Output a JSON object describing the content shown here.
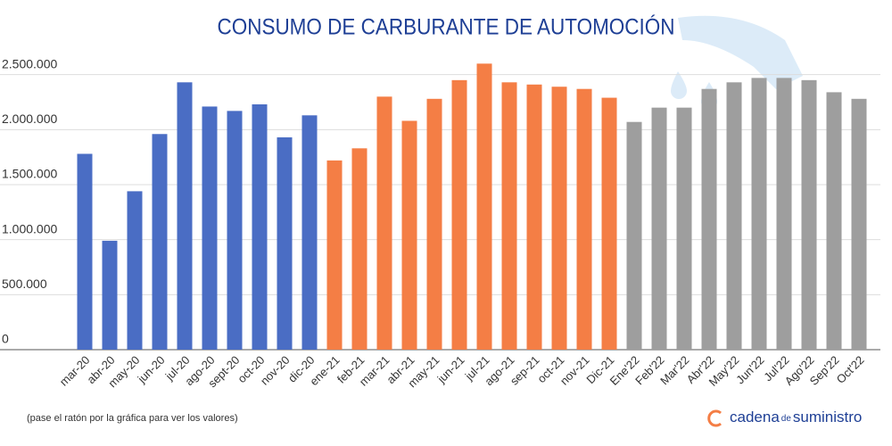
{
  "chart_data": {
    "type": "bar",
    "title": "CONSUMO DE CARBURANTE DE AUTOMOCIÓN",
    "categories": [
      "mar-20",
      "abr-20",
      "may-20",
      "jun-20",
      "jul-20",
      "ago-20",
      "sept-20",
      "oct-20",
      "nov-20",
      "dic-20",
      "ene-21",
      "feb-21",
      "mar-21",
      "abr-21",
      "may-21",
      "jun-21",
      "jul-21",
      "ago-21",
      "sep-21",
      "oct-21",
      "nov-21",
      "Dic-21",
      "Ene'22",
      "Feb'22",
      "Mar'22",
      "Abr'22",
      "May'22",
      "Jun'22",
      "Jul'22",
      "Ago'22",
      "Sep'22",
      "Oct'22"
    ],
    "values": [
      1780000,
      990000,
      1440000,
      1960000,
      2430000,
      2210000,
      2170000,
      2230000,
      1930000,
      2130000,
      1720000,
      1830000,
      2300000,
      2080000,
      2280000,
      2450000,
      2600000,
      2430000,
      2410000,
      2390000,
      2370000,
      2290000,
      2070000,
      2200000,
      2200000,
      2370000,
      2430000,
      2470000,
      2470000,
      2450000,
      2340000,
      2280000
    ],
    "colors": [
      "#4a6dc4",
      "#4a6dc4",
      "#4a6dc4",
      "#4a6dc4",
      "#4a6dc4",
      "#4a6dc4",
      "#4a6dc4",
      "#4a6dc4",
      "#4a6dc4",
      "#4a6dc4",
      "#f47e45",
      "#f47e45",
      "#f47e45",
      "#f47e45",
      "#f47e45",
      "#f47e45",
      "#f47e45",
      "#f47e45",
      "#f47e45",
      "#f47e45",
      "#f47e45",
      "#f47e45",
      "#9e9e9e",
      "#9e9e9e",
      "#9e9e9e",
      "#9e9e9e",
      "#9e9e9e",
      "#9e9e9e",
      "#9e9e9e",
      "#9e9e9e",
      "#9e9e9e",
      "#9e9e9e"
    ],
    "ylim": [
      0,
      2700000
    ],
    "yticks": [
      {
        "value": 0,
        "label": "0"
      },
      {
        "value": 500000,
        "label": "500.000"
      },
      {
        "value": 1000000,
        "label": "1.000.000"
      },
      {
        "value": 1500000,
        "label": "1.500.000"
      },
      {
        "value": 2000000,
        "label": "2.000.000"
      },
      {
        "value": 2500000,
        "label": "2.500.000"
      }
    ],
    "grid": true,
    "footnote": "(pase el ratón por la gráfica para ver los valores)",
    "brand": {
      "part1": "cadena",
      "part2": "de",
      "part3": "suministro"
    }
  }
}
